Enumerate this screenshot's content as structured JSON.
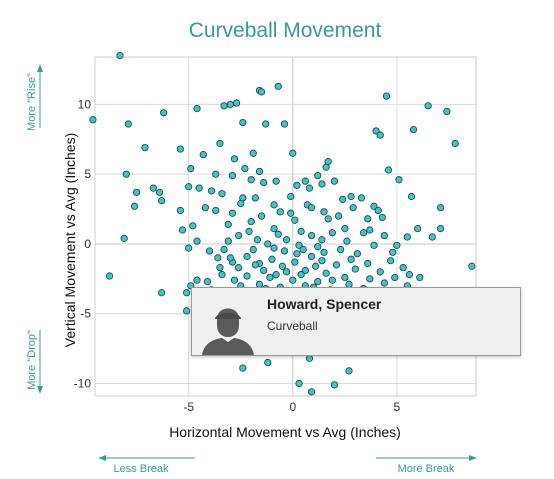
{
  "chart_data": {
    "type": "scatter",
    "title": "Curveball Movement",
    "xlabel": "Horizontal Movement vs Avg (Inches)",
    "ylabel": "Vertical Movement vs Avg (Inches)",
    "xlim": [
      -9.5,
      8.8
    ],
    "ylim": [
      -10.9,
      13.4
    ],
    "x_ticks": [
      -5,
      0,
      5
    ],
    "y_ticks": [
      -10,
      -5,
      0,
      5,
      10
    ],
    "grid": true,
    "direction_labels": {
      "rise": "More \"Rise\"",
      "drop": "More \"Drop\"",
      "less_break": "Less Break",
      "more_break": "More Break"
    },
    "points": [
      [
        -8.3,
        13.5
      ],
      [
        -9.6,
        8.9
      ],
      [
        -8.0,
        5.0
      ],
      [
        -7.9,
        8.6
      ],
      [
        -7.1,
        6.9
      ],
      [
        -7.5,
        3.7
      ],
      [
        -6.7,
        4.0
      ],
      [
        -6.4,
        3.7
      ],
      [
        -6.3,
        3.1
      ],
      [
        -7.6,
        2.7
      ],
      [
        -8.1,
        0.4
      ],
      [
        -8.8,
        -2.3
      ],
      [
        -6.2,
        9.4
      ],
      [
        -5.4,
        6.8
      ],
      [
        -4.6,
        9.7
      ],
      [
        -4.3,
        6.4
      ],
      [
        -5.4,
        2.4
      ],
      [
        -5.3,
        1.0
      ],
      [
        -3.3,
        9.9
      ],
      [
        -3.0,
        10.0
      ],
      [
        -2.4,
        8.7
      ],
      [
        -1.6,
        11.0
      ],
      [
        -1.5,
        10.9
      ],
      [
        -1.3,
        8.6
      ],
      [
        -0.4,
        8.6
      ],
      [
        -1.9,
        6.5
      ],
      [
        0.0,
        6.5
      ],
      [
        -2.8,
        6.1
      ],
      [
        -2.3,
        5.4
      ],
      [
        -1.6,
        5.2
      ],
      [
        -3.7,
        5.0
      ],
      [
        -2.9,
        4.9
      ],
      [
        -2.0,
        4.6
      ],
      [
        -0.8,
        4.5
      ],
      [
        0.2,
        4.2
      ],
      [
        0.6,
        4.5
      ],
      [
        1.2,
        4.9
      ],
      [
        1.7,
        5.9
      ],
      [
        1.6,
        5.5
      ],
      [
        1.4,
        4.3
      ],
      [
        2.0,
        4.5
      ],
      [
        -4.9,
        5.4
      ],
      [
        -3.5,
        7.2
      ],
      [
        -5.0,
        4.1
      ],
      [
        -4.5,
        4.0
      ],
      [
        -3.9,
        3.8
      ],
      [
        -3.4,
        3.6
      ],
      [
        -4.2,
        2.6
      ],
      [
        -3.7,
        2.4
      ],
      [
        -2.9,
        2.2
      ],
      [
        -2.4,
        3.3
      ],
      [
        -1.8,
        3.3
      ],
      [
        -1.4,
        4.4
      ],
      [
        -0.9,
        2.8
      ],
      [
        -0.6,
        2.3
      ],
      [
        -0.1,
        2.2
      ],
      [
        0.1,
        1.7
      ],
      [
        0.7,
        2.8
      ],
      [
        0.9,
        2.6
      ],
      [
        1.5,
        2.3
      ],
      [
        1.7,
        1.8
      ],
      [
        2.2,
        2.0
      ],
      [
        2.8,
        3.4
      ],
      [
        3.3,
        3.3
      ],
      [
        3.9,
        2.7
      ],
      [
        4.1,
        2.4
      ],
      [
        4.6,
        5.3
      ],
      [
        5.1,
        4.6
      ],
      [
        4.3,
        1.9
      ],
      [
        3.7,
        1.0
      ],
      [
        2.5,
        1.1
      ],
      [
        1.9,
        0.8
      ],
      [
        1.4,
        0.3
      ],
      [
        0.9,
        0.6
      ],
      [
        0.3,
        -0.1
      ],
      [
        -0.3,
        0.3
      ],
      [
        -0.7,
        0.7
      ],
      [
        -1.2,
        0.0
      ],
      [
        -1.7,
        0.3
      ],
      [
        -2.1,
        0.9
      ],
      [
        -2.6,
        0.6
      ],
      [
        -3.1,
        0.2
      ],
      [
        -4.0,
        -0.5
      ],
      [
        -4.6,
        0.2
      ],
      [
        -5.0,
        -0.3
      ],
      [
        -3.6,
        -1.0
      ],
      [
        -2.9,
        -1.3
      ],
      [
        -2.2,
        -0.9
      ],
      [
        -1.6,
        -1.4
      ],
      [
        -1.0,
        -1.1
      ],
      [
        -0.5,
        -1.6
      ],
      [
        0.1,
        -1.3
      ],
      [
        0.6,
        -1.9
      ],
      [
        1.1,
        -1.6
      ],
      [
        1.6,
        -2.1
      ],
      [
        2.1,
        -1.5
      ],
      [
        2.5,
        -2.4
      ],
      [
        3.0,
        -1.8
      ],
      [
        3.6,
        -1.4
      ],
      [
        4.2,
        -2.0
      ],
      [
        4.7,
        -1.2
      ],
      [
        5.3,
        -1.7
      ],
      [
        5.6,
        -2.2
      ],
      [
        6.1,
        -2.4
      ],
      [
        5.5,
        -3.0
      ],
      [
        4.4,
        -2.8
      ],
      [
        3.4,
        -3.2
      ],
      [
        2.7,
        -2.9
      ],
      [
        1.8,
        -3.3
      ],
      [
        1.2,
        -2.7
      ],
      [
        0.6,
        -3.0
      ],
      [
        0.0,
        -2.6
      ],
      [
        -0.6,
        -3.1
      ],
      [
        -1.1,
        -2.4
      ],
      [
        -1.6,
        -2.9
      ],
      [
        -2.2,
        -2.3
      ],
      [
        -2.8,
        -2.6
      ],
      [
        -3.4,
        -2.2
      ],
      [
        -4.1,
        -2.7
      ],
      [
        -4.9,
        -3.0
      ],
      [
        -5.1,
        -3.5
      ],
      [
        -6.3,
        -3.5
      ],
      [
        -4.6,
        -2.6
      ],
      [
        -3.9,
        -3.3
      ],
      [
        8.6,
        -1.6
      ],
      [
        7.1,
        2.6
      ],
      [
        7.1,
        1.1
      ],
      [
        7.8,
        7.2
      ],
      [
        7.4,
        9.5
      ],
      [
        6.5,
        9.9
      ],
      [
        5.8,
        8.2
      ],
      [
        4.5,
        10.6
      ],
      [
        4.0,
        8.1
      ],
      [
        4.2,
        7.8
      ],
      [
        5.7,
        3.4
      ],
      [
        5.5,
        0.5
      ],
      [
        6.0,
        1.1
      ],
      [
        6.7,
        0.5
      ],
      [
        -0.7,
        11.3
      ],
      [
        -2.7,
        10.1
      ],
      [
        0.2,
        -0.7
      ],
      [
        -0.9,
        -0.3
      ],
      [
        -1.4,
        -1.9
      ],
      [
        -2.6,
        -1.7
      ],
      [
        0.9,
        -0.9
      ],
      [
        1.5,
        -0.6
      ],
      [
        2.3,
        -0.4
      ],
      [
        3.1,
        -0.7
      ],
      [
        3.9,
        -0.1
      ],
      [
        4.8,
        -0.6
      ],
      [
        -5.1,
        -4.8
      ],
      [
        -2.4,
        -8.9
      ],
      [
        -1.2,
        -8.5
      ],
      [
        0.8,
        -8.2
      ],
      [
        0.3,
        -10.0
      ],
      [
        0.9,
        -10.6
      ],
      [
        2.0,
        -10.1
      ],
      [
        2.7,
        -9.1
      ],
      [
        3.1,
        -7.6
      ],
      [
        -3.0,
        -1.0
      ],
      [
        -1.9,
        -0.4
      ],
      [
        -0.4,
        -0.5
      ],
      [
        1.2,
        -0.2
      ],
      [
        2.6,
        0.2
      ],
      [
        3.4,
        0.8
      ],
      [
        -4.8,
        1.3
      ],
      [
        -3.1,
        1.4
      ],
      [
        -2.0,
        1.6
      ],
      [
        -0.9,
        1.1
      ],
      [
        0.4,
        0.9
      ],
      [
        2.9,
        2.6
      ],
      [
        -1.5,
        2.0
      ],
      [
        -2.5,
        2.9
      ],
      [
        -0.1,
        3.4
      ],
      [
        0.8,
        4.0
      ],
      [
        2.4,
        3.2
      ],
      [
        3.6,
        1.8
      ],
      [
        4.4,
        0.6
      ],
      [
        5.0,
        -0.1
      ],
      [
        -3.3,
        -0.4
      ],
      [
        -1.8,
        -1.5
      ],
      [
        -0.3,
        -2.0
      ],
      [
        0.4,
        -2.2
      ],
      [
        1.9,
        -2.6
      ],
      [
        2.8,
        -1.1
      ],
      [
        3.7,
        -2.5
      ],
      [
        4.9,
        -2.4
      ],
      [
        -2.5,
        -3.0
      ],
      [
        -1.3,
        -3.2
      ],
      [
        0.1,
        -3.4
      ],
      [
        1.0,
        -3.1
      ],
      [
        2.2,
        -3.6
      ],
      [
        -3.5,
        -1.7
      ],
      [
        -0.8,
        -2.2
      ],
      [
        1.4,
        -1.2
      ],
      [
        0.5,
        -0.4
      ]
    ]
  },
  "tooltip": {
    "player_name": "Howard, Spencer",
    "pitch_type": "Curveball"
  }
}
